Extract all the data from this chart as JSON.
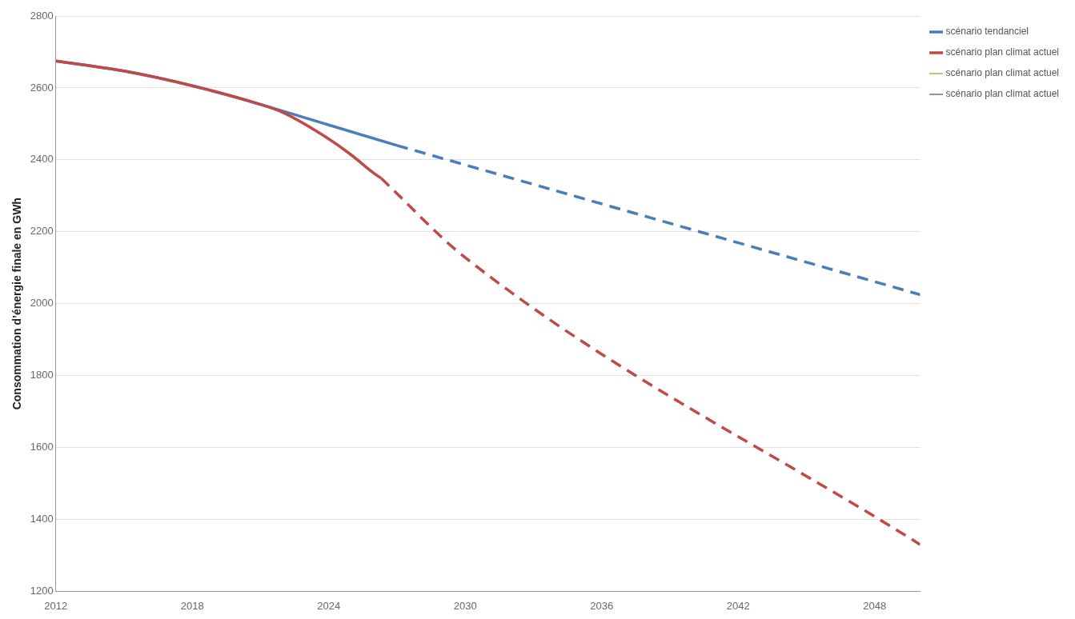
{
  "chart_data": {
    "type": "line",
    "ylabel": "Consommation d’énergie finale en GWh",
    "xlim": [
      2012,
      2050
    ],
    "xticks": [
      2012,
      2018,
      2024,
      2030,
      2036,
      2042,
      2048
    ],
    "ylim": [
      1200,
      2800
    ],
    "yticks": [
      1200,
      1400,
      1600,
      1800,
      2000,
      2200,
      2400,
      2600,
      2800
    ],
    "grid": "y",
    "legend": "top right",
    "marker": "none",
    "series": [
      {
        "name": "scénario tendanciel",
        "color": "#4a7ebb",
        "line_style": "solid",
        "x": [
          2012,
          2015,
          2018,
          2021,
          2024,
          2027
        ],
        "values": [
          2675,
          2647,
          2606,
          2554,
          2497,
          2440
        ]
      },
      {
        "color": "#4a7ebb",
        "line_style": "dashed",
        "x": [
          2027,
          2050
        ],
        "values": [
          2440,
          2025
        ]
      },
      {
        "name": "scénario plan climat actuel",
        "color": "#be4b48",
        "line_style": "solid",
        "x": [
          2012,
          2015,
          2018,
          2021,
          2022,
          2024,
          2025,
          2026,
          2026.3
        ],
        "values": [
          2675,
          2647,
          2606,
          2554,
          2531,
          2458,
          2413,
          2362,
          2349
        ]
      },
      {
        "color": "#be4b48",
        "line_style": "dashed",
        "x": [
          2026.3,
          2030,
          2050
        ],
        "values": [
          2349,
          2128,
          1330
        ]
      },
      {
        "name": "scénario plan climat actuel",
        "color": "#98b954",
        "line_style": "solid"
      },
      {
        "name": "scénario plan climat actuel",
        "color": "#7d60a0",
        "line_style": "solid"
      }
    ]
  }
}
